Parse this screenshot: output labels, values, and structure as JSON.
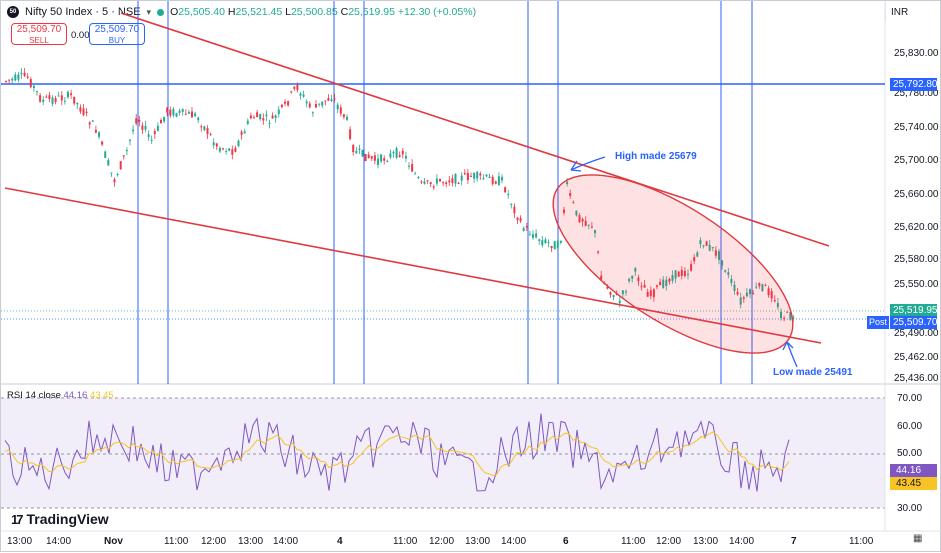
{
  "header": {
    "logo_text": "50",
    "title": "Nifty 50 Index · 5 · NSE",
    "ohlc": {
      "o_label": "O",
      "o": "25,505.40",
      "h_label": "H",
      "h": "25,521.45",
      "l_label": "L",
      "l": "25,500.85",
      "c_label": "C",
      "c": "25,519.95",
      "change": "+12.30 (+0.05%)"
    }
  },
  "trade": {
    "sell_price": "25,509.70",
    "sell_label": "SELL",
    "spread": "0.00",
    "buy_price": "25,509.70",
    "buy_label": "BUY"
  },
  "currency": "INR",
  "price_axis": {
    "labels": [
      "25,830.00",
      "25,780.00",
      "25,740.00",
      "25,700.00",
      "25,660.00",
      "25,620.00",
      "25,580.00",
      "25,550.00",
      "25,490.00",
      "25,462.00",
      "25,436.00"
    ]
  },
  "tags": {
    "level": "25,792.80",
    "last": "25,519.95",
    "bid": "25,509.70",
    "post": "Post"
  },
  "time_axis": [
    "13:00",
    "14:00",
    "Nov",
    "11:00",
    "12:00",
    "13:00",
    "14:00",
    "4",
    "11:00",
    "12:00",
    "13:00",
    "14:00",
    "6",
    "11:00",
    "12:00",
    "13:00",
    "14:00",
    "7",
    "11:00"
  ],
  "rsi": {
    "label": "RSI 14 close",
    "value": "44.16",
    "ma": "43.45",
    "axis": [
      "70.00",
      "60.00",
      "50.00",
      "40.00",
      "30.00"
    ]
  },
  "annotations": {
    "high": "High made 25679",
    "low": "Low made 25491"
  },
  "brand": "TradingView",
  "colors": {
    "up": "#22ab94",
    "down": "#f23645",
    "accent": "#2962ff",
    "rsi_line": "#7e57c2",
    "rsi_ma": "#f7c325"
  }
}
